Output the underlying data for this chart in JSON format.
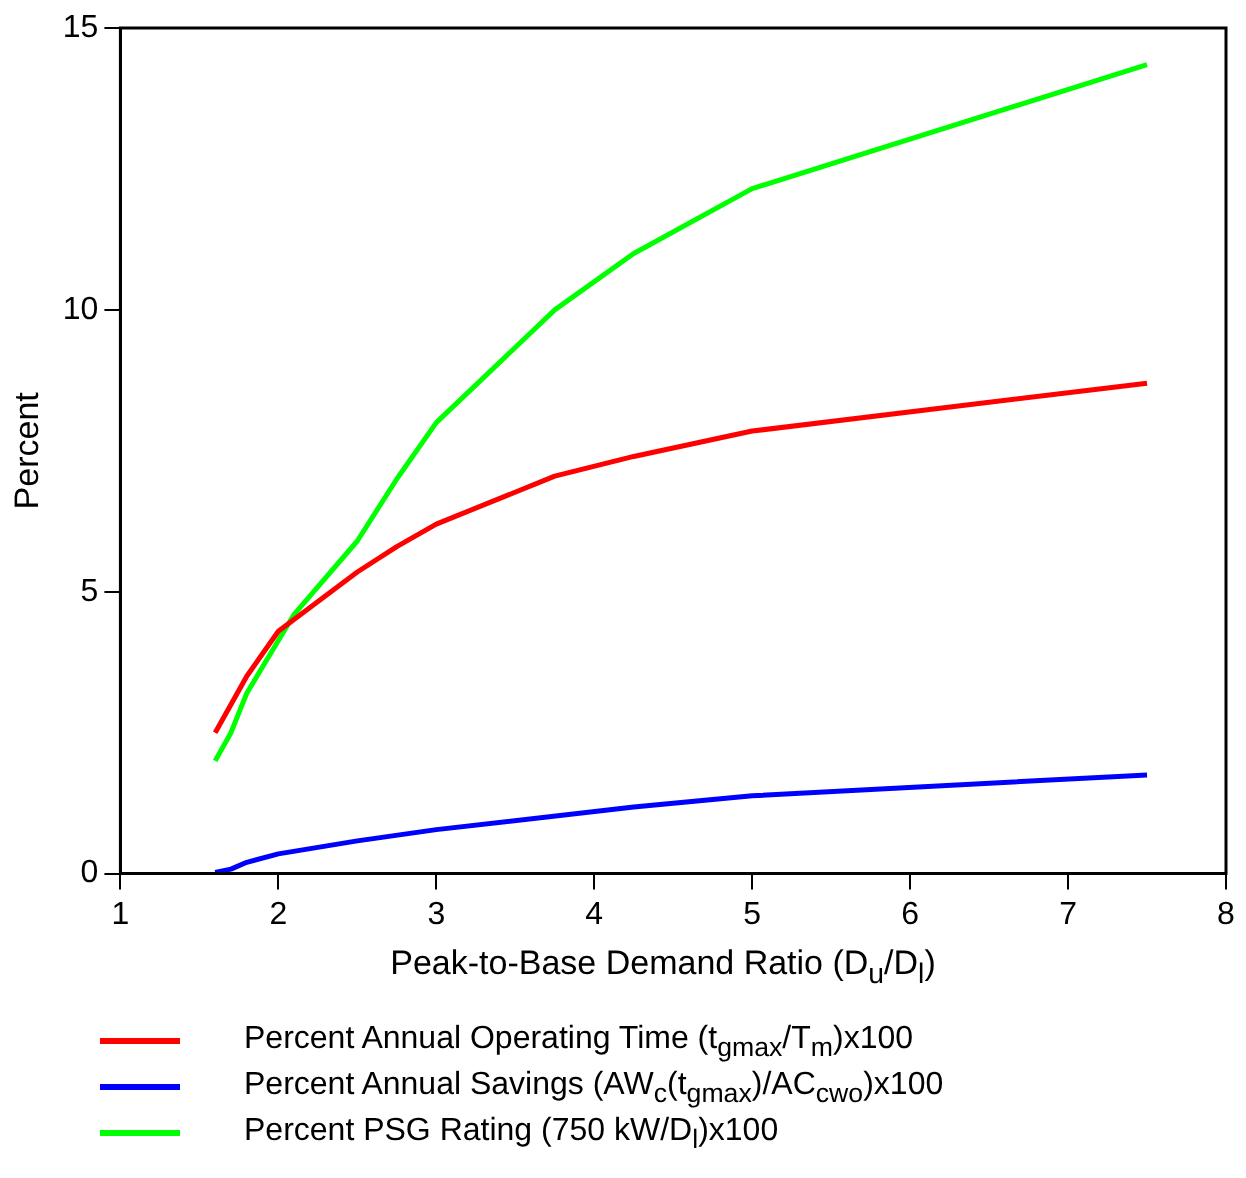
{
  "chart_data": {
    "type": "line",
    "xlabel": "Peak-to-Base Demand Ratio (D$_{u}$/D$_{l}$)",
    "ylabel": "Percent",
    "xlim": [
      1,
      8
    ],
    "xticks": [
      1,
      2,
      3,
      4,
      5,
      6,
      7,
      8
    ],
    "ylim": [
      0,
      15
    ],
    "yticks": [
      0,
      5,
      10,
      15
    ],
    "grid": false,
    "legend": "bottom",
    "marker": "none",
    "line_style": "solid",
    "series": [
      {
        "name": "Percent Annual Operating Time (t$_{gmax}$/T$_{m}$)x100",
        "color": "#ff0000",
        "x": [
          1.6,
          1.8,
          2.0,
          2.5,
          2.75,
          3,
          3.75,
          4.25,
          5,
          7.5
        ],
        "values": [
          2.5,
          3.5,
          4.3,
          5.35,
          5.8,
          6.2,
          7.05,
          7.4,
          7.85,
          8.7
        ]
      },
      {
        "name": "Percent Annual Savings (AW$_{c}$(t$_{gmax}$)/AC$_{cwo}$)x100",
        "color": "#0000ff",
        "x": [
          1.6,
          1.7,
          1.8,
          2,
          2.5,
          3,
          4.25,
          5,
          7.5
        ],
        "values": [
          0.02,
          0.08,
          0.2,
          0.35,
          0.58,
          0.78,
          1.18,
          1.38,
          1.75
        ]
      },
      {
        "name": "Percent PSG Rating (750 kW/D$_{l}$)x100",
        "color": "#00ff00",
        "x": [
          1.6,
          1.7,
          1.8,
          2.1,
          2.5,
          2.75,
          3,
          3.75,
          4.25,
          5,
          7.5
        ],
        "values": [
          2.0,
          2.5,
          3.2,
          4.6,
          5.9,
          7.0,
          8.0,
          10.0,
          11.0,
          12.15,
          14.35
        ]
      }
    ]
  }
}
